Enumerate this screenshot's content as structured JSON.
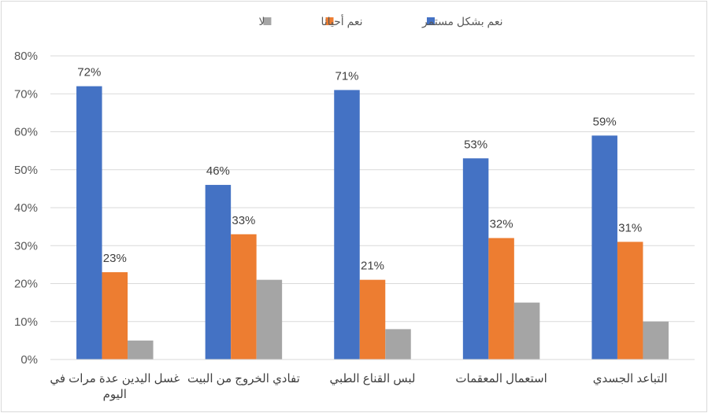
{
  "chart_data": {
    "type": "bar",
    "categories": [
      [
        "غسل اليدين عدة مرات في",
        "اليوم"
      ],
      [
        "تفادي الخروج من البيت"
      ],
      [
        "لبس القناع الطبي"
      ],
      [
        "استعمال المعقمات"
      ],
      [
        "التباعد الجسدي"
      ]
    ],
    "series": [
      {
        "name": "نعم بشكل مستمر",
        "color": "#4472c4",
        "values": [
          72,
          46,
          71,
          53,
          59
        ],
        "show_labels": true
      },
      {
        "name": "نعم أحيانا",
        "color": "#ed7d31",
        "values": [
          23,
          33,
          21,
          32,
          31
        ],
        "show_labels": true
      },
      {
        "name": "لا",
        "color": "#a5a5a5",
        "values": [
          5,
          21,
          8,
          15,
          10
        ],
        "show_labels": false
      }
    ],
    "ylim": [
      0,
      80
    ],
    "yticks": [
      0,
      10,
      20,
      30,
      40,
      50,
      60,
      70,
      80
    ],
    "value_suffix": "%",
    "grid": true,
    "legend_position": "top-center",
    "title": "",
    "xlabel": "",
    "ylabel": ""
  }
}
